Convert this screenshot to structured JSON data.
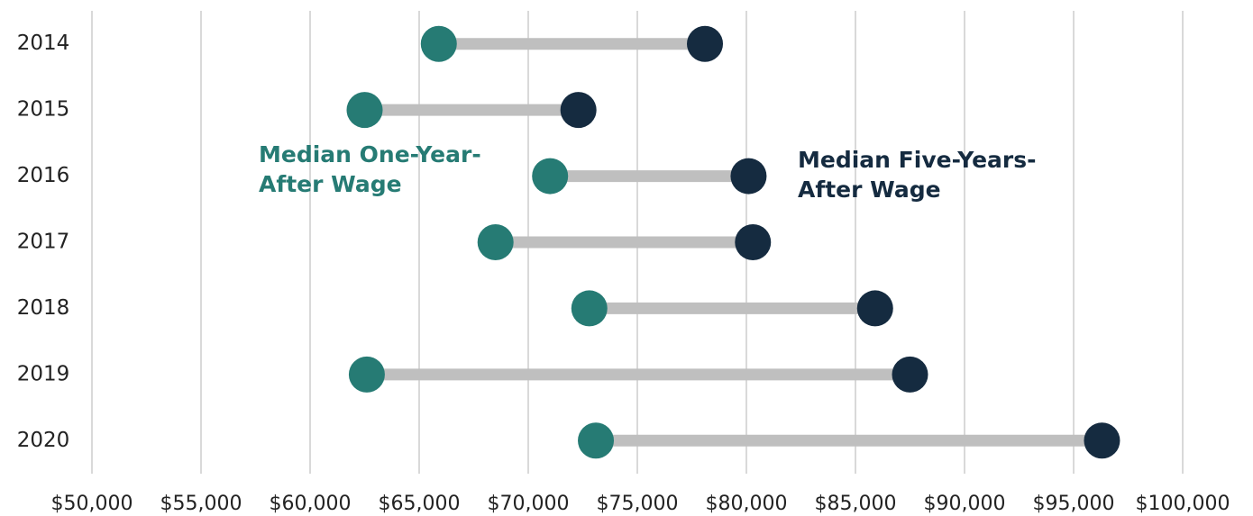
{
  "chart_data": {
    "type": "dumbbell",
    "categories": [
      "2014",
      "2015",
      "2016",
      "2017",
      "2018",
      "2019",
      "2020"
    ],
    "series": [
      {
        "name": "Median One-Year-After Wage",
        "color": "#267b74",
        "values": [
          65900,
          62500,
          71000,
          68500,
          72800,
          62600,
          73100
        ]
      },
      {
        "name": "Median Five-Years-After Wage",
        "color": "#152b40",
        "values": [
          78100,
          72300,
          80100,
          80300,
          85900,
          87500,
          96300
        ]
      }
    ],
    "connector_color": "#bfbfbf",
    "xlim": [
      50000,
      100000
    ],
    "xticks": [
      {
        "value": 50000,
        "label": "$50,000"
      },
      {
        "value": 55000,
        "label": "$55,000"
      },
      {
        "value": 60000,
        "label": "$60,000"
      },
      {
        "value": 65000,
        "label": "$65,000"
      },
      {
        "value": 70000,
        "label": "$70,000"
      },
      {
        "value": 75000,
        "label": "$75,000"
      },
      {
        "value": 80000,
        "label": "$80,000"
      },
      {
        "value": 85000,
        "label": "$85,000"
      },
      {
        "value": 90000,
        "label": "$90,000"
      },
      {
        "value": 95000,
        "label": "$95,000"
      },
      {
        "value": 100000,
        "label": "$100,000"
      }
    ],
    "grid": true
  }
}
